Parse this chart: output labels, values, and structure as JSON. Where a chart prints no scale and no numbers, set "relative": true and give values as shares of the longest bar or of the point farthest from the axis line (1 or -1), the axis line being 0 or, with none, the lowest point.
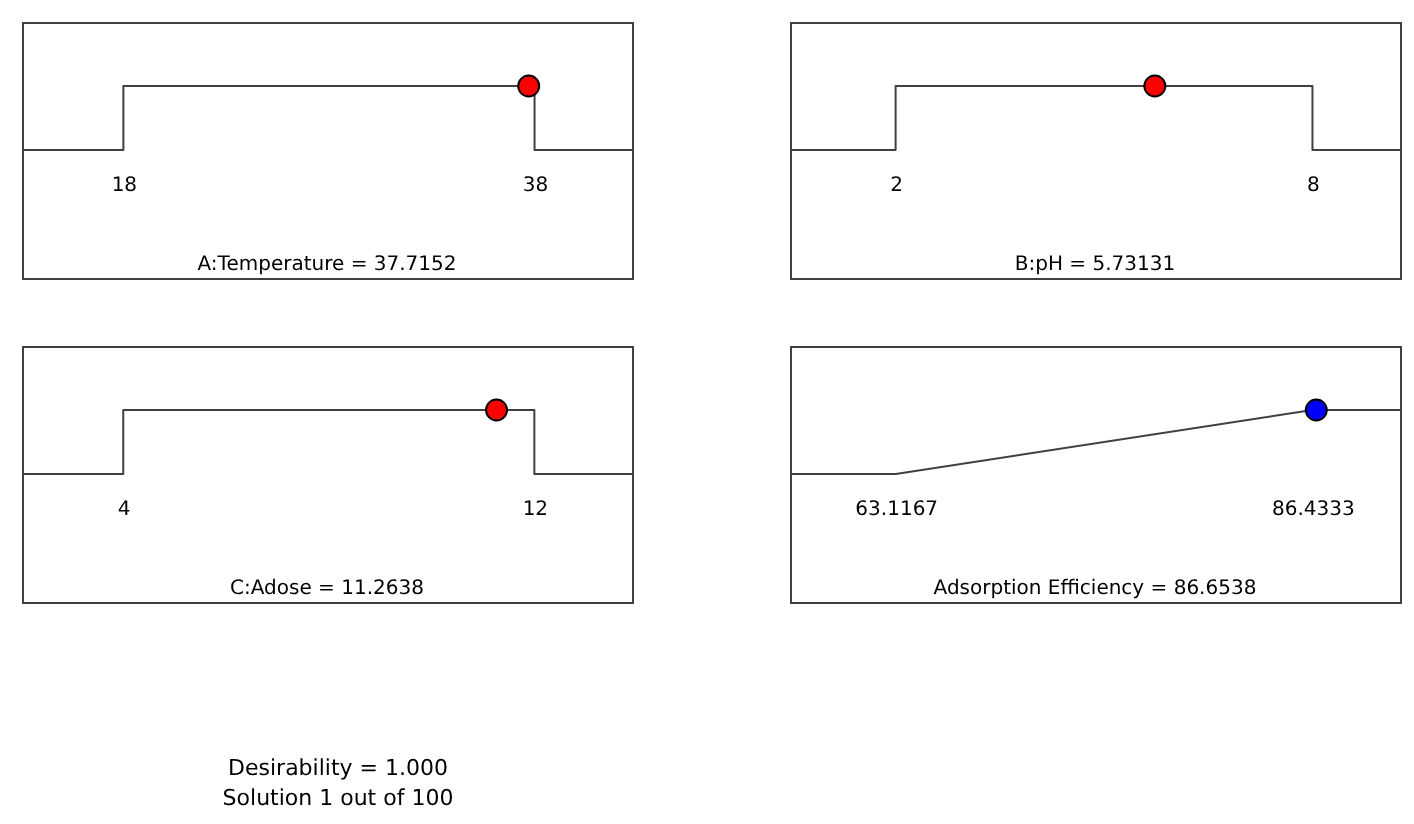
{
  "chart_data": [
    {
      "type": "line",
      "relative": true,
      "xlabel": "A:Temperature = 37.7152",
      "xlim": [
        13.07,
        42.74
      ],
      "xticks": [
        18,
        38
      ],
      "series": [
        {
          "type": "line",
          "color": "#404040",
          "x": [
            13.07,
            18,
            18,
            38,
            38,
            42.74
          ],
          "values": [
            0,
            0,
            1,
            1,
            0,
            0
          ]
        },
        {
          "type": "scatter",
          "marker": "circle",
          "color": "#ff0000",
          "x": [
            37.7152
          ],
          "values": [
            1
          ]
        }
      ]
    },
    {
      "type": "line",
      "relative": true,
      "xlabel": "B:pH = 5.73131",
      "xlim": [
        0.48,
        9.26
      ],
      "xticks": [
        2,
        8
      ],
      "series": [
        {
          "type": "line",
          "color": "#404040",
          "x": [
            0.48,
            2,
            2,
            8,
            8,
            9.26
          ],
          "values": [
            0,
            0,
            1,
            1,
            0,
            0
          ]
        },
        {
          "type": "scatter",
          "marker": "circle",
          "color": "#ff0000",
          "x": [
            5.73131
          ],
          "values": [
            1
          ]
        }
      ]
    },
    {
      "type": "line",
      "relative": true,
      "xlabel": "C:Adose = 11.2638",
      "xlim": [
        2.03,
        13.9
      ],
      "xticks": [
        4,
        12
      ],
      "series": [
        {
          "type": "line",
          "color": "#404040",
          "x": [
            2.03,
            4,
            4,
            12,
            12,
            13.9
          ],
          "values": [
            0,
            0,
            1,
            1,
            0,
            0
          ]
        },
        {
          "type": "scatter",
          "marker": "circle",
          "color": "#ff0000",
          "x": [
            11.2638
          ],
          "values": [
            1
          ]
        }
      ]
    },
    {
      "type": "line",
      "relative": true,
      "xlabel": "Adsorption Efficiency = 86.6538",
      "xlim": [
        57.2,
        91.34
      ],
      "xticks": [
        {
          "value": 63.1167,
          "label": "63.1167"
        },
        {
          "value": 86.4333,
          "label": "86.4333"
        }
      ],
      "series": [
        {
          "type": "line",
          "color": "#404040",
          "x": [
            57.2,
            63.1167,
            86.4333,
            91.34
          ],
          "values": [
            0,
            0,
            1,
            1
          ]
        },
        {
          "type": "scatter",
          "marker": "circle",
          "color": "#0000ff",
          "x": [
            86.6538
          ],
          "values": [
            1
          ]
        }
      ]
    },
    {
      "type": "other",
      "annotations": [
        "Desirability = 1.000",
        "Solution 1 out of 100"
      ]
    }
  ]
}
